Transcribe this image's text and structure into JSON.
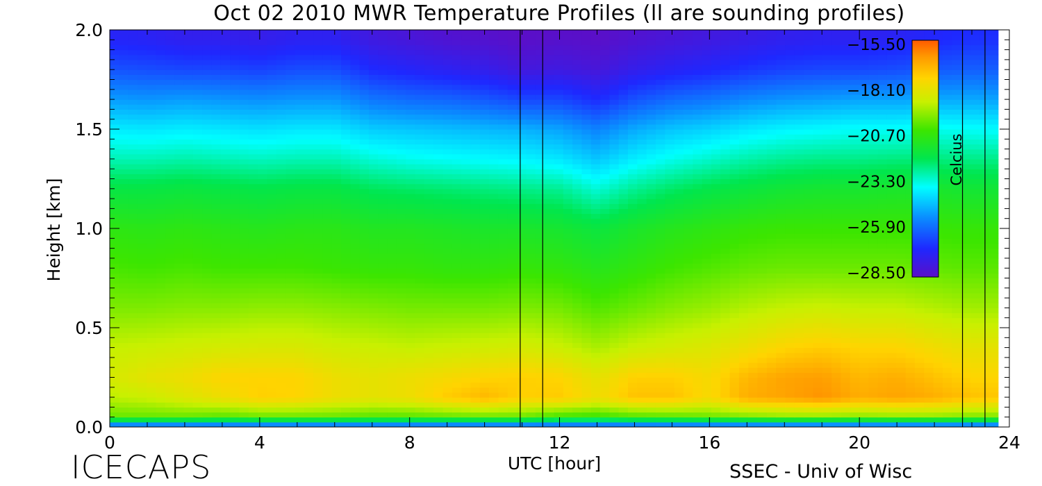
{
  "chart_data": {
    "type": "heatmap",
    "title": "Oct 02 2010 MWR Temperature Profiles (ll are sounding profiles)",
    "xlabel": "UTC [hour]",
    "ylabel": "Height [km]",
    "xlim": [
      0,
      24
    ],
    "ylim": [
      0,
      2.0
    ],
    "x_ticks": [
      "0",
      "4",
      "8",
      "12",
      "16",
      "20",
      "24"
    ],
    "y_ticks": [
      "0.0",
      "0.5",
      "1.0",
      "1.5",
      "2.0"
    ],
    "colorbar": {
      "label": "Celcius",
      "ticks": [
        "-15.50",
        "-18.10",
        "-20.70",
        "-23.30",
        "-25.90",
        "-28.50"
      ],
      "range": [
        -28.5,
        -15.5
      ]
    },
    "sounding_times_utc": [
      10.95,
      11.55,
      22.75,
      23.35
    ],
    "data_end_utc": 23.7,
    "temperature_grid": {
      "x": [
        0,
        1,
        2,
        3,
        4,
        5,
        6,
        7,
        8,
        9,
        10,
        11,
        12,
        13,
        14,
        15,
        16,
        17,
        18,
        19,
        20,
        21,
        22,
        23,
        23.7
      ],
      "y": [
        0.0,
        0.05,
        0.15,
        0.25,
        0.4,
        0.6,
        0.8,
        1.0,
        1.2,
        1.35,
        1.5,
        1.65,
        1.8,
        1.95,
        2.0
      ],
      "values_celsius": [
        [
          -27.0,
          -27.0,
          -27.0,
          -27.0,
          -27.0,
          -27.0,
          -27.0,
          -27.0,
          -27.0,
          -27.0,
          -27.0,
          -27.0,
          -27.0,
          -27.0,
          -27.0,
          -27.0,
          -27.0,
          -27.0,
          -27.0,
          -27.0,
          -27.0,
          -27.0,
          -27.0,
          -27.0,
          -27.0
        ],
        [
          -20.0,
          -20.0,
          -20.0,
          -20.2,
          -20.0,
          -20.0,
          -20.0,
          -20.2,
          -20.2,
          -20.1,
          -20.0,
          -20.0,
          -20.5,
          -20.6,
          -20.3,
          -20.2,
          -20.0,
          -19.8,
          -19.6,
          -19.6,
          -19.7,
          -19.6,
          -19.6,
          -19.8,
          -19.8
        ],
        [
          -19.0,
          -18.8,
          -18.4,
          -18.0,
          -17.5,
          -17.6,
          -18.0,
          -18.2,
          -18.0,
          -17.4,
          -17.0,
          -17.5,
          -17.4,
          -18.0,
          -17.2,
          -17.2,
          -17.8,
          -16.8,
          -16.6,
          -16.3,
          -16.8,
          -16.6,
          -16.8,
          -17.2,
          -17.3
        ],
        [
          -18.6,
          -18.2,
          -18.0,
          -17.6,
          -17.6,
          -17.6,
          -18.0,
          -18.2,
          -18.0,
          -17.8,
          -17.6,
          -17.5,
          -17.6,
          -18.2,
          -17.5,
          -17.5,
          -17.8,
          -17.0,
          -16.6,
          -16.5,
          -17.0,
          -16.8,
          -17.2,
          -17.6,
          -17.6
        ],
        [
          -18.9,
          -18.8,
          -18.7,
          -18.6,
          -18.5,
          -18.5,
          -18.7,
          -18.8,
          -18.9,
          -18.8,
          -18.7,
          -18.6,
          -18.8,
          -19.2,
          -18.8,
          -18.6,
          -18.4,
          -18.0,
          -17.6,
          -17.4,
          -17.6,
          -17.6,
          -17.9,
          -18.2,
          -18.2
        ],
        [
          -19.7,
          -19.7,
          -19.6,
          -19.6,
          -19.5,
          -19.5,
          -19.6,
          -19.7,
          -19.8,
          -19.8,
          -19.8,
          -19.7,
          -19.8,
          -20.2,
          -19.9,
          -19.6,
          -19.4,
          -19.1,
          -18.9,
          -18.8,
          -18.9,
          -18.9,
          -19.1,
          -19.3,
          -19.3
        ],
        [
          -20.3,
          -20.4,
          -20.3,
          -20.4,
          -20.4,
          -20.4,
          -20.5,
          -20.6,
          -20.6,
          -20.7,
          -20.7,
          -20.6,
          -20.7,
          -21.0,
          -20.7,
          -20.4,
          -20.2,
          -20.0,
          -19.9,
          -19.9,
          -19.9,
          -19.9,
          -20.0,
          -20.1,
          -20.1
        ],
        [
          -20.8,
          -20.9,
          -20.8,
          -20.9,
          -21.0,
          -20.9,
          -20.9,
          -21.1,
          -21.1,
          -21.2,
          -21.3,
          -21.3,
          -21.4,
          -21.7,
          -21.3,
          -21.0,
          -20.8,
          -20.6,
          -20.5,
          -20.5,
          -20.5,
          -20.5,
          -20.5,
          -20.6,
          -20.6
        ],
        [
          -21.8,
          -21.8,
          -21.7,
          -21.8,
          -21.9,
          -21.8,
          -21.8,
          -22.1,
          -22.2,
          -22.3,
          -22.4,
          -22.5,
          -22.6,
          -23.2,
          -22.6,
          -22.2,
          -21.9,
          -21.7,
          -21.5,
          -21.4,
          -21.4,
          -21.3,
          -21.3,
          -21.5,
          -21.5
        ],
        [
          -22.9,
          -22.9,
          -22.8,
          -22.9,
          -23.0,
          -22.9,
          -22.9,
          -23.2,
          -23.4,
          -23.5,
          -23.6,
          -23.7,
          -23.9,
          -24.4,
          -23.8,
          -23.4,
          -23.1,
          -22.8,
          -22.6,
          -22.5,
          -22.5,
          -22.4,
          -22.4,
          -22.5,
          -22.5
        ],
        [
          -23.8,
          -23.9,
          -23.8,
          -23.9,
          -24.0,
          -23.9,
          -23.9,
          -24.3,
          -24.4,
          -24.5,
          -24.6,
          -24.7,
          -24.9,
          -25.4,
          -24.8,
          -24.4,
          -24.2,
          -23.9,
          -23.7,
          -23.6,
          -23.5,
          -23.5,
          -23.4,
          -23.5,
          -23.6
        ],
        [
          -25.0,
          -25.1,
          -25.0,
          -25.1,
          -25.2,
          -25.1,
          -25.1,
          -25.6,
          -25.8,
          -25.9,
          -26.1,
          -26.4,
          -26.4,
          -26.9,
          -26.2,
          -25.8,
          -25.6,
          -25.3,
          -25.1,
          -25.0,
          -24.9,
          -24.9,
          -24.8,
          -24.8,
          -24.9
        ],
        [
          -26.2,
          -26.3,
          -26.4,
          -26.4,
          -26.5,
          -26.3,
          -26.3,
          -26.9,
          -27.1,
          -27.3,
          -27.5,
          -27.9,
          -27.8,
          -28.0,
          -27.5,
          -27.2,
          -27.0,
          -26.7,
          -26.5,
          -26.4,
          -26.4,
          -26.3,
          -26.1,
          -26.0,
          -26.0
        ],
        [
          -27.1,
          -27.2,
          -27.4,
          -27.4,
          -27.5,
          -27.3,
          -27.3,
          -27.8,
          -28.0,
          -28.2,
          -28.3,
          -28.5,
          -28.4,
          -28.5,
          -28.2,
          -28.0,
          -27.8,
          -27.6,
          -27.4,
          -27.3,
          -27.3,
          -27.2,
          -27.0,
          -26.8,
          -26.8
        ],
        [
          -27.2,
          -27.3,
          -27.5,
          -27.5,
          -27.6,
          -27.4,
          -27.4,
          -27.9,
          -28.1,
          -28.3,
          -28.4,
          -28.5,
          -28.5,
          -28.5,
          -28.3,
          -28.1,
          -27.9,
          -27.7,
          -27.5,
          -27.4,
          -27.4,
          -27.3,
          -27.1,
          -26.9,
          -26.9
        ]
      ]
    }
  },
  "footer": {
    "left_label": "ICECAPS",
    "right_label": "SSEC - Univ of Wisc"
  }
}
